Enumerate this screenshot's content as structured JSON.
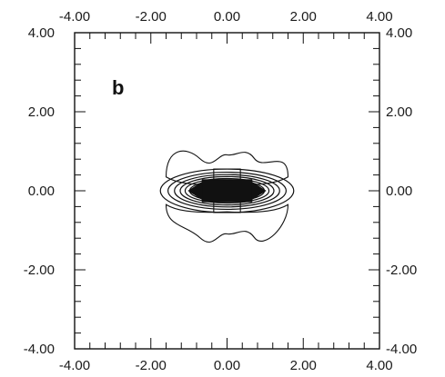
{
  "chart_data": {
    "type": "contour",
    "panel_label": "b",
    "xlim": [
      -4,
      4
    ],
    "ylim": [
      -4,
      4
    ],
    "x_ticks": [
      -4,
      -2,
      0,
      2,
      4
    ],
    "y_ticks": [
      -4,
      -2,
      0,
      2,
      4
    ],
    "x_tick_labels": [
      "-4.00",
      "-2.00",
      "0.00",
      "2.00",
      "4.00"
    ],
    "y_tick_labels": [
      "-4.00",
      "-2.00",
      "0.00",
      "2.00",
      "4.00"
    ],
    "minor_tick_step": 0.4,
    "center": [
      0,
      0
    ],
    "contour_levels": [
      {
        "rx": 1.75,
        "ry": 0.55
      },
      {
        "rx": 1.55,
        "ry": 0.47
      },
      {
        "rx": 1.38,
        "ry": 0.41
      },
      {
        "rx": 1.23,
        "ry": 0.36
      },
      {
        "rx": 1.1,
        "ry": 0.31
      },
      {
        "rx": 0.98,
        "ry": 0.27
      },
      {
        "rx": 0.88,
        "ry": 0.23
      }
    ],
    "dense_core": {
      "x": [
        -0.65,
        0.65
      ],
      "y": [
        -0.28,
        0.28
      ]
    },
    "outer_lobes": {
      "upper_x": [
        -1.6,
        1.6
      ],
      "upper_y": [
        0.35,
        1.0
      ],
      "lower_x": [
        -1.6,
        1.6
      ],
      "lower_y": [
        -1.0,
        -0.35
      ]
    },
    "line_color": "#111111"
  }
}
